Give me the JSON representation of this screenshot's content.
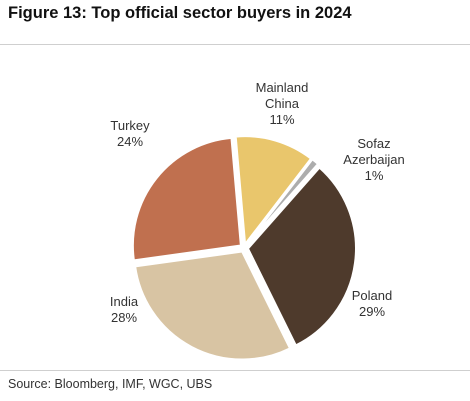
{
  "title": "Figure 13: Top official sector buyers in 2024",
  "source": "Source: Bloomberg, IMF, WGC, UBS",
  "chart_data": {
    "type": "pie",
    "slices": [
      {
        "label_lines": [
          "Mainland",
          "China"
        ],
        "value": 11,
        "value_label": "11%",
        "color": "#e9c66c"
      },
      {
        "label_lines": [
          "Sofaz",
          "Azerbaijan"
        ],
        "value": 1,
        "value_label": "1%",
        "color": "#adadad"
      },
      {
        "label_lines": [
          "Poland"
        ],
        "value": 29,
        "value_label": "29%",
        "color": "#4e3a2c"
      },
      {
        "label_lines": [
          "India"
        ],
        "value": 28,
        "value_label": "28%",
        "color": "#d8c4a3"
      },
      {
        "label_lines": [
          "Turkey"
        ],
        "value": 24,
        "value_label": "24%",
        "color": "#c0704f"
      }
    ]
  }
}
